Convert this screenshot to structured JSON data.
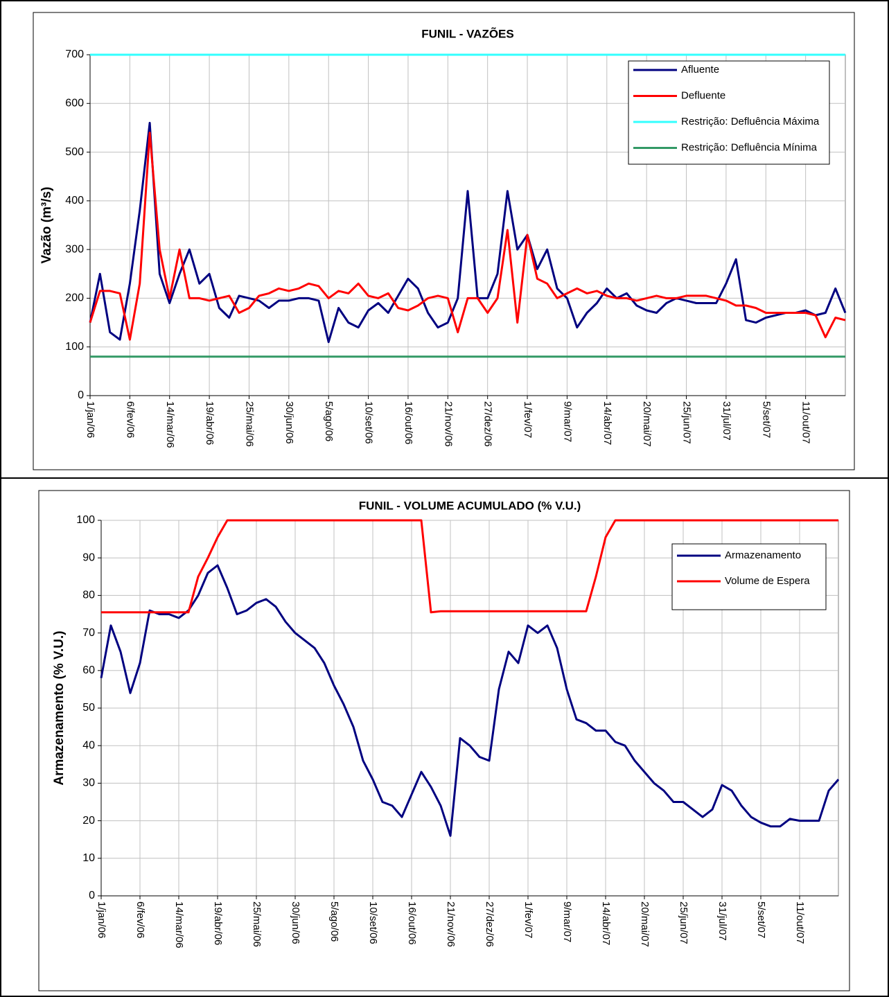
{
  "chart_data": [
    {
      "type": "line",
      "title": "FUNIL - VAZÕES",
      "y_label": "Vazão (m³/s)",
      "x": [
        "1/jan/06",
        "10/jan/06",
        "19/jan/06",
        "28/jan/06",
        "6/fev/06",
        "15/fev/06",
        "24/fev/06",
        "5/mar/06",
        "14/mar/06",
        "23/mar/06",
        "1/abr/06",
        "10/abr/06",
        "19/abr/06",
        "28/abr/06",
        "7/mai/06",
        "16/mai/06",
        "25/mai/06",
        "3/jun/06",
        "12/jun/06",
        "21/jun/06",
        "30/jun/06",
        "9/jul/06",
        "18/jul/06",
        "27/jul/06",
        "5/ago/06",
        "14/ago/06",
        "23/ago/06",
        "1/set/06",
        "10/set/06",
        "19/set/06",
        "28/set/06",
        "7/out/06",
        "16/out/06",
        "25/out/06",
        "3/nov/06",
        "12/nov/06",
        "21/nov/06",
        "30/nov/06",
        "9/dez/06",
        "18/dez/06",
        "27/dez/06",
        "5/jan/07",
        "14/jan/07",
        "23/jan/07",
        "1/fev/07",
        "10/fev/07",
        "19/fev/07",
        "28/fev/07",
        "9/mar/07",
        "18/mar/07",
        "27/mar/07",
        "5/abr/07",
        "14/abr/07",
        "23/abr/07",
        "2/mai/07",
        "11/mai/07",
        "20/mai/07",
        "29/mai/07",
        "7/jun/07",
        "16/jun/07",
        "25/jun/07",
        "4/jul/07",
        "13/jul/07",
        "22/jul/07",
        "31/jul/07",
        "9/ago/07",
        "18/ago/07",
        "27/ago/07",
        "5/set/07",
        "14/set/07",
        "23/set/07",
        "2/out/07",
        "11/out/07",
        "20/out/07",
        "29/out/07",
        "7/nov/07",
        "16/nov/07"
      ],
      "xlim": [
        "1/jan/06",
        "16/nov/07"
      ],
      "xticks": [
        "1/jan/06",
        "6/fev/06",
        "14/mar/06",
        "19/abr/06",
        "25/mai/06",
        "30/jun/06",
        "5/ago/06",
        "10/set/06",
        "16/out/06",
        "21/nov/06",
        "27/dez/06",
        "1/fev/07",
        "9/mar/07",
        "14/abr/07",
        "20/mai/07",
        "25/jun/07",
        "31/jul/07",
        "5/set/07",
        "11/out/07"
      ],
      "ylim": [
        0,
        700
      ],
      "yticks": [
        0,
        100,
        200,
        300,
        400,
        500,
        600,
        700
      ],
      "grid": true,
      "series": [
        {
          "name": "Afluente",
          "color": "#000080",
          "values": [
            150,
            250,
            130,
            115,
            230,
            380,
            560,
            250,
            190,
            250,
            300,
            230,
            250,
            180,
            160,
            205,
            200,
            195,
            180,
            195,
            195,
            200,
            200,
            195,
            110,
            180,
            150,
            140,
            175,
            190,
            170,
            205,
            240,
            220,
            170,
            140,
            150,
            200,
            420,
            200,
            200,
            250,
            420,
            300,
            330,
            260,
            300,
            220,
            200,
            140,
            170,
            190,
            220,
            200,
            210,
            185,
            175,
            170,
            190,
            200,
            195,
            190,
            190,
            190,
            230,
            280,
            155,
            150,
            160,
            165,
            170,
            170,
            175,
            165,
            170,
            220,
            170
          ]
        },
        {
          "name": "Defluente",
          "color": "#ff0000",
          "values": [
            150,
            215,
            215,
            210,
            115,
            230,
            540,
            300,
            200,
            300,
            200,
            200,
            195,
            200,
            205,
            170,
            180,
            205,
            210,
            220,
            215,
            220,
            230,
            225,
            200,
            215,
            210,
            230,
            205,
            200,
            210,
            180,
            175,
            185,
            200,
            205,
            200,
            130,
            200,
            200,
            170,
            200,
            340,
            150,
            330,
            240,
            230,
            200,
            210,
            220,
            210,
            215,
            205,
            200,
            200,
            195,
            200,
            205,
            200,
            200,
            205,
            205,
            205,
            200,
            195,
            185,
            185,
            180,
            170,
            170,
            170,
            170,
            170,
            165,
            120,
            160,
            155
          ]
        }
      ],
      "reference_lines": [
        {
          "name": "Restrição: Defluência Máxima",
          "color": "#33ffff",
          "value": 700
        },
        {
          "name": "Restrição: Defluência Mínima",
          "color": "#339966",
          "value": 80
        }
      ]
    },
    {
      "type": "line",
      "title": "FUNIL - VOLUME ACUMULADO (% V.U.)",
      "y_label": "Armazenamento (% V.U.)",
      "x": [
        "1/jan/06",
        "10/jan/06",
        "19/jan/06",
        "28/jan/06",
        "6/fev/06",
        "15/fev/06",
        "24/fev/06",
        "5/mar/06",
        "14/mar/06",
        "23/mar/06",
        "1/abr/06",
        "10/abr/06",
        "19/abr/06",
        "28/abr/06",
        "7/mai/06",
        "16/mai/06",
        "25/mai/06",
        "3/jun/06",
        "12/jun/06",
        "21/jun/06",
        "30/jun/06",
        "9/jul/06",
        "18/jul/06",
        "27/jul/06",
        "5/ago/06",
        "14/ago/06",
        "23/ago/06",
        "1/set/06",
        "10/set/06",
        "19/set/06",
        "28/set/06",
        "7/out/06",
        "16/out/06",
        "25/out/06",
        "3/nov/06",
        "12/nov/06",
        "21/nov/06",
        "30/nov/06",
        "9/dez/06",
        "18/dez/06",
        "27/dez/06",
        "5/jan/07",
        "14/jan/07",
        "23/jan/07",
        "1/fev/07",
        "10/fev/07",
        "19/fev/07",
        "28/fev/07",
        "9/mar/07",
        "18/mar/07",
        "27/mar/07",
        "5/abr/07",
        "14/abr/07",
        "23/abr/07",
        "2/mai/07",
        "11/mai/07",
        "20/mai/07",
        "29/mai/07",
        "7/jun/07",
        "16/jun/07",
        "25/jun/07",
        "4/jul/07",
        "13/jul/07",
        "22/jul/07",
        "31/jul/07",
        "9/ago/07",
        "18/ago/07",
        "27/ago/07",
        "5/set/07",
        "14/set/07",
        "23/set/07",
        "2/out/07",
        "11/out/07",
        "20/out/07",
        "29/out/07",
        "7/nov/07",
        "16/nov/07"
      ],
      "xlim": [
        "1/jan/06",
        "16/nov/07"
      ],
      "xticks": [
        "1/jan/06",
        "6/fev/06",
        "14/mar/06",
        "19/abr/06",
        "25/mai/06",
        "30/jun/06",
        "5/ago/06",
        "10/set/06",
        "16/out/06",
        "21/nov/06",
        "27/dez/06",
        "1/fev/07",
        "9/mar/07",
        "14/abr/07",
        "20/mai/07",
        "25/jun/07",
        "31/jul/07",
        "5/set/07",
        "11/out/07"
      ],
      "ylim": [
        0,
        100
      ],
      "yticks": [
        0,
        10,
        20,
        30,
        40,
        50,
        60,
        70,
        80,
        90,
        100
      ],
      "grid": true,
      "series": [
        {
          "name": "Armazenamento",
          "color": "#000080",
          "values": [
            58,
            72,
            65,
            54,
            62,
            76,
            75,
            75,
            74,
            76,
            80,
            86,
            88,
            82,
            75,
            76,
            78,
            79,
            77,
            73,
            70,
            68,
            66,
            62,
            56,
            51,
            45,
            36,
            31,
            25,
            24,
            21,
            27,
            33,
            29,
            24,
            16,
            42,
            40,
            37,
            36,
            55,
            65,
            62,
            72,
            70,
            72,
            66,
            55,
            47,
            46,
            44,
            44,
            41,
            40,
            36,
            33,
            30,
            28,
            25,
            25,
            23,
            21,
            23,
            29.5,
            28,
            24,
            21,
            19.5,
            18.5,
            18.5,
            20.5,
            20,
            20,
            20,
            28,
            31
          ]
        },
        {
          "name": "Volume de Espera",
          "color": "#ff0000",
          "values": [
            75.5,
            75.5,
            75.5,
            75.5,
            75.5,
            75.5,
            75.5,
            75.5,
            75.5,
            75.5,
            85,
            90,
            95.5,
            100,
            100,
            100,
            100,
            100,
            100,
            100,
            100,
            100,
            100,
            100,
            100,
            100,
            100,
            100,
            100,
            100,
            100,
            100,
            100,
            100,
            75.5,
            75.8,
            75.8,
            75.8,
            75.8,
            75.8,
            75.8,
            75.8,
            75.8,
            75.8,
            75.8,
            75.8,
            75.8,
            75.8,
            75.8,
            75.8,
            75.8,
            85,
            95.5,
            100,
            100,
            100,
            100,
            100,
            100,
            100,
            100,
            100,
            100,
            100,
            100,
            100,
            100,
            100,
            100,
            100,
            100,
            100,
            100,
            100,
            100,
            100,
            100
          ]
        }
      ]
    }
  ]
}
